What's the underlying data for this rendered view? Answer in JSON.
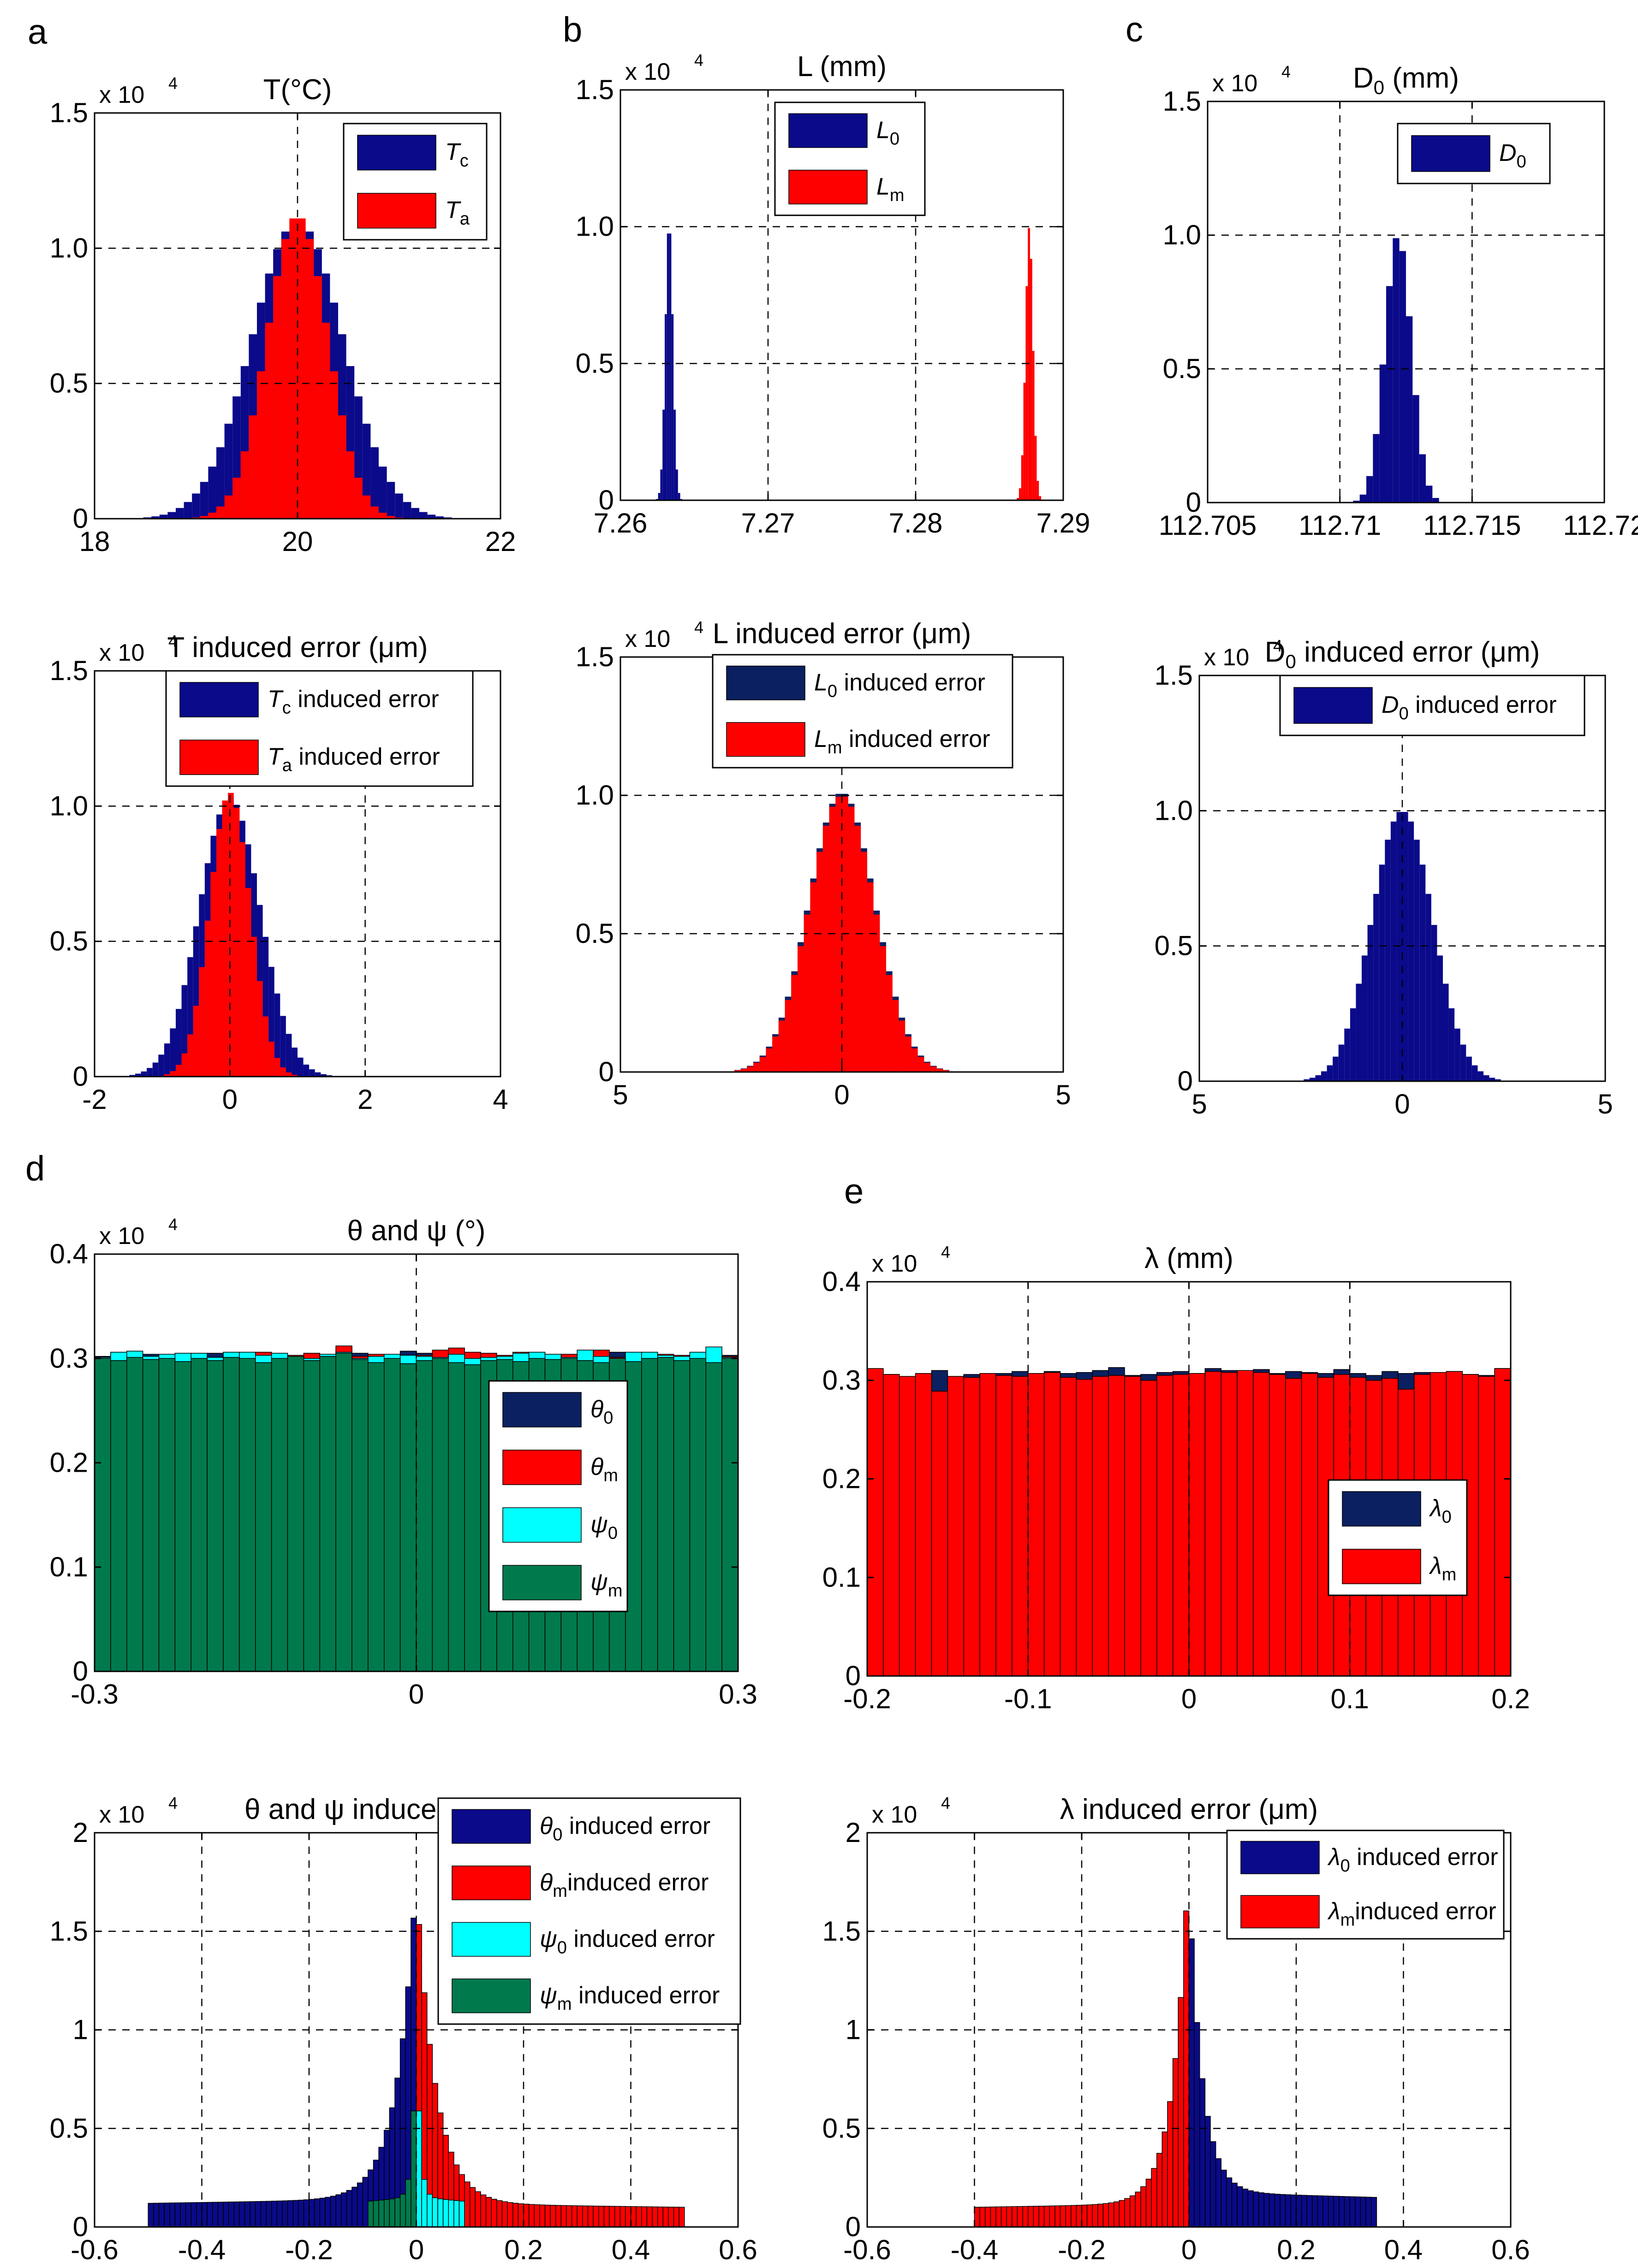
{
  "panel_letters": [
    "a",
    "b",
    "c",
    "d",
    "e"
  ],
  "chart_data": [
    {
      "id": "a_top",
      "type": "histogram",
      "title": "T(°C)",
      "multiplier": "x 10",
      "multiplier_exp": "4",
      "xlim": [
        18,
        22
      ],
      "ylim": [
        0,
        1.5
      ],
      "xticks": [
        18,
        20,
        22
      ],
      "xtick_labels": [
        "18",
        "20",
        "22"
      ],
      "yticks": [
        0,
        0.5,
        1.0,
        1.5
      ],
      "ytick_labels": [
        "0",
        "0.5",
        "1.0",
        "1.5"
      ],
      "xgrid": [
        20
      ],
      "ygrid": [
        0.5,
        1.0
      ],
      "legend": {
        "position": "top-right"
      },
      "series": [
        {
          "name": "T",
          "sub": "c",
          "color": "#0a0a8a",
          "dist": "gauss",
          "center": 20,
          "sigma": 0.45,
          "peak": 1.1,
          "bins": 50,
          "range": [
            18,
            22
          ]
        },
        {
          "name": "T",
          "sub": "a",
          "color": "#ff0000",
          "dist": "gauss",
          "center": 20,
          "sigma": 0.3,
          "peak": 1.12,
          "bins": 50,
          "range": [
            18,
            22
          ]
        }
      ]
    },
    {
      "id": "b_top",
      "type": "histogram",
      "title": "L (mm)",
      "multiplier": "x 10",
      "multiplier_exp": "4",
      "xlim": [
        7.26,
        7.29
      ],
      "ylim": [
        0,
        1.5
      ],
      "xticks": [
        7.26,
        7.27,
        7.28,
        7.29
      ],
      "xtick_labels": [
        "7.26",
        "7.27",
        "7.28",
        "7.29"
      ],
      "yticks": [
        0,
        0.5,
        1.0,
        1.5
      ],
      "ytick_labels": [
        "0",
        "0.5",
        "1.0",
        "1.5"
      ],
      "xgrid": [
        7.27,
        7.28
      ],
      "ygrid": [
        0.5,
        1.0
      ],
      "legend": {
        "position": "top-center"
      },
      "series": [
        {
          "name": "L",
          "sub": "0",
          "color": "#0a0a8a",
          "dist": "gauss",
          "center": 7.2633,
          "sigma": 0.00025,
          "peak": 1.02,
          "bins": 200,
          "range": [
            7.26,
            7.29
          ]
        },
        {
          "name": "L",
          "sub": "m",
          "color": "#ff0000",
          "dist": "gauss",
          "center": 7.2877,
          "sigma": 0.00025,
          "peak": 1.0,
          "bins": 200,
          "range": [
            7.26,
            7.29
          ]
        }
      ]
    },
    {
      "id": "c_top",
      "type": "histogram",
      "title": "D",
      "title_sub": "0",
      "title_after": " (mm)",
      "multiplier": "x 10",
      "multiplier_exp": "4",
      "xlim": [
        112.705,
        112.72
      ],
      "ylim": [
        0,
        1.5
      ],
      "xticks": [
        112.705,
        112.71,
        112.715,
        112.72
      ],
      "xtick_labels": [
        "112.705",
        "112.71",
        "112.715",
        "112.72"
      ],
      "yticks": [
        0,
        0.5,
        1.0,
        1.5
      ],
      "ytick_labels": [
        "0",
        "0.5",
        "1.0",
        "1.5"
      ],
      "xgrid": [
        112.71,
        112.715
      ],
      "ygrid": [
        0.5,
        1.0
      ],
      "legend": {
        "position": "top-right"
      },
      "series": [
        {
          "name": "D",
          "sub": "0",
          "color": "#0a0a8a",
          "dist": "gauss",
          "center": 112.7122,
          "sigma": 0.0005,
          "peak": 1.0,
          "bins": 60,
          "range": [
            112.705,
            112.72
          ]
        }
      ]
    },
    {
      "id": "a_bottom",
      "type": "histogram",
      "title": "T induced error (μm)",
      "multiplier": "x 10",
      "multiplier_exp": "4",
      "xlim": [
        -2,
        4
      ],
      "ylim": [
        0,
        1.5
      ],
      "xticks": [
        -2,
        0,
        2,
        4
      ],
      "xtick_labels": [
        "-2",
        "0",
        "2",
        "4"
      ],
      "yticks": [
        0,
        0.5,
        1.0,
        1.5
      ],
      "ytick_labels": [
        "0",
        "0.5",
        "1.0",
        "1.5"
      ],
      "xgrid": [
        0,
        2
      ],
      "ygrid": [
        0.5,
        1.0
      ],
      "legend": {
        "position": "top-center"
      },
      "series": [
        {
          "name": "T",
          "sub": "c",
          "suffix": " induced error",
          "color": "#0a0a8a",
          "dist": "gauss",
          "center": 0,
          "sigma": 0.45,
          "peak": 1.03,
          "bins": 70,
          "range": [
            -2,
            4
          ]
        },
        {
          "name": "T",
          "sub": "a",
          "suffix": " induced error",
          "color": "#ff0000",
          "dist": "gauss",
          "center": 0,
          "sigma": 0.3,
          "peak": 1.05,
          "bins": 70,
          "range": [
            -2,
            4
          ]
        }
      ]
    },
    {
      "id": "b_bottom",
      "type": "histogram",
      "title": "L induced error (μm)",
      "multiplier": "x 10",
      "multiplier_exp": "4",
      "xlim": [
        -5,
        5
      ],
      "ylim": [
        0,
        1.5
      ],
      "xticks": [
        -5,
        0,
        5
      ],
      "xtick_labels": [
        "5",
        "0",
        "5"
      ],
      "yticks": [
        0,
        0.5,
        1.0,
        1.5
      ],
      "ytick_labels": [
        "0",
        "0.5",
        "1.0",
        "1.5"
      ],
      "xgrid": [
        0
      ],
      "ygrid": [
        0.5,
        1.0
      ],
      "legend": {
        "position": "top-center"
      },
      "series": [
        {
          "name": "L",
          "sub": "0",
          "suffix": " induced error",
          "color": "#0a2060",
          "dist": "gauss",
          "center": 0,
          "sigma": 0.75,
          "peak": 1.01,
          "bins": 70,
          "range": [
            -5,
            5
          ]
        },
        {
          "name": "L",
          "sub": "m",
          "suffix": " induced error",
          "color": "#ff0000",
          "dist": "gauss",
          "center": 0,
          "sigma": 0.74,
          "peak": 1.0,
          "bins": 70,
          "range": [
            -5,
            5
          ]
        }
      ]
    },
    {
      "id": "c_bottom",
      "type": "histogram",
      "title": "D",
      "title_sub": "0",
      "title_after": " induced error (μm)",
      "multiplier": "x 10",
      "multiplier_exp": "4",
      "xlim": [
        -5,
        5
      ],
      "ylim": [
        0,
        1.5
      ],
      "xticks": [
        -5,
        0,
        5
      ],
      "xtick_labels": [
        "5",
        "0",
        "5"
      ],
      "yticks": [
        0,
        0.5,
        1.0,
        1.5
      ],
      "ytick_labels": [
        "0",
        "0.5",
        "1.0",
        "1.5"
      ],
      "xgrid": [
        0
      ],
      "ygrid": [
        0.5,
        1.0
      ],
      "legend": {
        "position": "top-right"
      },
      "series": [
        {
          "name": "D",
          "sub": "0",
          "suffix": " induced error",
          "color": "#0a0a8a",
          "dist": "gauss",
          "center": 0,
          "sigma": 0.75,
          "peak": 1.0,
          "bins": 70,
          "range": [
            -5,
            5
          ]
        }
      ]
    },
    {
      "id": "d_top",
      "type": "histogram",
      "title": "θ and ψ (°)",
      "multiplier": "x 10",
      "multiplier_exp": "4",
      "xlim": [
        -0.3,
        0.3
      ],
      "ylim": [
        0,
        0.4
      ],
      "xticks": [
        -0.3,
        0,
        0.3
      ],
      "xtick_labels": [
        "-0.3",
        "0",
        "0.3"
      ],
      "yticks": [
        0,
        0.1,
        0.2,
        0.3,
        0.4
      ],
      "ytick_labels": [
        "0",
        "0.1",
        "0.2",
        "0.3",
        "0.4"
      ],
      "xgrid": [
        0
      ],
      "ygrid": [],
      "legend": {
        "position": "right"
      },
      "series": [
        {
          "name": "θ",
          "sub": "0",
          "color": "#0a2060",
          "dist": "uniform",
          "range": [
            -0.3,
            0.3
          ],
          "bins": 40,
          "values": [
            0.302,
            0.303,
            0.3,
            0.304,
            0.301,
            0.3,
            0.302,
            0.305,
            0.303,
            0.301,
            0.3,
            0.304,
            0.302,
            0.301,
            0.303,
            0.31,
            0.305,
            0.301,
            0.303,
            0.307,
            0.305,
            0.303,
            0.302,
            0.304,
            0.301,
            0.302,
            0.3,
            0.305,
            0.303,
            0.302,
            0.301,
            0.303,
            0.306,
            0.303,
            0.301,
            0.3,
            0.302,
            0.304,
            0.305,
            0.303
          ]
        },
        {
          "name": "θ",
          "sub": "m",
          "color": "#ff0000",
          "dist": "uniform",
          "range": [
            -0.3,
            0.3
          ],
          "bins": 40,
          "values": [
            0.3,
            0.301,
            0.303,
            0.3,
            0.302,
            0.303,
            0.301,
            0.299,
            0.302,
            0.303,
            0.306,
            0.301,
            0.303,
            0.305,
            0.301,
            0.312,
            0.302,
            0.304,
            0.301,
            0.3,
            0.303,
            0.308,
            0.31,
            0.306,
            0.305,
            0.303,
            0.306,
            0.3,
            0.302,
            0.304,
            0.302,
            0.308,
            0.301,
            0.303,
            0.305,
            0.304,
            0.303,
            0.302,
            0.301,
            0.302
          ]
        },
        {
          "name": "ψ",
          "sub": "0",
          "color": "#00ffff",
          "dist": "uniform",
          "range": [
            -0.3,
            0.3
          ],
          "bins": 40,
          "values": [
            0.301,
            0.306,
            0.307,
            0.302,
            0.304,
            0.305,
            0.305,
            0.301,
            0.306,
            0.306,
            0.303,
            0.305,
            0.302,
            0.3,
            0.304,
            0.306,
            0.3,
            0.302,
            0.304,
            0.303,
            0.302,
            0.301,
            0.304,
            0.3,
            0.301,
            0.302,
            0.305,
            0.306,
            0.304,
            0.301,
            0.308,
            0.302,
            0.3,
            0.306,
            0.306,
            0.303,
            0.302,
            0.306,
            0.311,
            0.301
          ]
        },
        {
          "name": "ψ",
          "sub": "m",
          "color": "#007a4d",
          "dist": "uniform",
          "range": [
            -0.3,
            0.3
          ],
          "bins": 40,
          "values": [
            0.3,
            0.298,
            0.301,
            0.299,
            0.3,
            0.297,
            0.3,
            0.298,
            0.301,
            0.3,
            0.296,
            0.3,
            0.302,
            0.298,
            0.302,
            0.305,
            0.299,
            0.296,
            0.3,
            0.295,
            0.298,
            0.3,
            0.296,
            0.294,
            0.298,
            0.299,
            0.297,
            0.3,
            0.299,
            0.3,
            0.298,
            0.296,
            0.3,
            0.297,
            0.3,
            0.301,
            0.298,
            0.3,
            0.296,
            0.3
          ]
        }
      ]
    },
    {
      "id": "e_top",
      "type": "histogram",
      "title": "λ (mm)",
      "multiplier": "x 10",
      "multiplier_exp": "4",
      "xlim": [
        -0.2,
        0.2
      ],
      "ylim": [
        0,
        0.4
      ],
      "xticks": [
        -0.2,
        -0.1,
        0,
        0.1,
        0.2
      ],
      "xtick_labels": [
        "-0.2",
        "-0.1",
        "0",
        "0.1",
        "0.2"
      ],
      "yticks": [
        0,
        0.1,
        0.2,
        0.3,
        0.4
      ],
      "ytick_labels": [
        "0",
        "0.1",
        "0.2",
        "0.3",
        "0.4"
      ],
      "xgrid": [
        -0.1,
        0,
        0.1
      ],
      "ygrid": [],
      "legend": {
        "position": "right"
      },
      "series": [
        {
          "name": "λ",
          "sub": "0",
          "color": "#0a2060",
          "dist": "uniform",
          "range": [
            -0.2,
            0.2
          ],
          "bins": 40,
          "values": [
            0.31,
            0.306,
            0.303,
            0.305,
            0.31,
            0.304,
            0.306,
            0.305,
            0.307,
            0.309,
            0.304,
            0.309,
            0.307,
            0.308,
            0.31,
            0.313,
            0.305,
            0.306,
            0.308,
            0.309,
            0.307,
            0.312,
            0.31,
            0.305,
            0.311,
            0.307,
            0.309,
            0.308,
            0.307,
            0.311,
            0.307,
            0.305,
            0.309,
            0.307,
            0.308,
            0.305,
            0.309,
            0.306,
            0.305,
            0.312
          ]
        },
        {
          "name": "λ",
          "sub": "m",
          "color": "#ff0000",
          "dist": "uniform",
          "range": [
            -0.2,
            0.2
          ],
          "bins": 40,
          "values": [
            0.312,
            0.306,
            0.304,
            0.307,
            0.289,
            0.304,
            0.303,
            0.307,
            0.305,
            0.304,
            0.307,
            0.308,
            0.303,
            0.301,
            0.304,
            0.305,
            0.304,
            0.3,
            0.305,
            0.306,
            0.307,
            0.309,
            0.308,
            0.31,
            0.308,
            0.306,
            0.302,
            0.307,
            0.303,
            0.306,
            0.303,
            0.3,
            0.302,
            0.291,
            0.306,
            0.308,
            0.309,
            0.306,
            0.304,
            0.312
          ]
        }
      ]
    },
    {
      "id": "d_bottom",
      "type": "histogram",
      "title": "θ and ψ induced error (μm)",
      "multiplier": "x 10",
      "multiplier_exp": "4",
      "xlim": [
        -0.6,
        0.6
      ],
      "ylim": [
        0,
        2
      ],
      "xticks": [
        -0.6,
        -0.4,
        -0.2,
        0,
        0.2,
        0.4,
        0.6
      ],
      "xtick_labels": [
        "-0.6",
        "-0.4",
        "-0.2",
        "0",
        "0.2",
        "0.4",
        "0.6"
      ],
      "yticks": [
        0,
        0.5,
        1,
        1.5,
        2
      ],
      "ytick_labels": [
        "0",
        "0.5",
        "1",
        "1.5",
        "2"
      ],
      "xgrid": [
        -0.4,
        -0.2,
        0,
        0.2,
        0.4
      ],
      "ygrid": [
        0.5,
        1,
        1.5
      ],
      "legend": {
        "position": "top-right"
      },
      "series": [
        {
          "name": "θ",
          "sub": "0",
          "suffix": " induced error",
          "color": "#0a0a8a",
          "dist": "tail",
          "side": "left",
          "from": -0.5,
          "to": 0,
          "peak": 1.76,
          "edge": 0.12,
          "bins": 50
        },
        {
          "name": "θ",
          "sub": "m",
          "suffix": "induced error",
          "color": "#ff0000",
          "dist": "tail",
          "side": "right",
          "from": 0,
          "to": 0.5,
          "peak": 1.73,
          "edge": 0.1,
          "bins": 50
        },
        {
          "name": "ψ",
          "sub": "0",
          "suffix": " induced error",
          "color": "#00ffff",
          "dist": "tail",
          "side": "right",
          "from": 0,
          "to": 0.09,
          "peak": 1.08,
          "edge": 0.13,
          "bins": 9
        },
        {
          "name": "ψ",
          "sub": "m",
          "suffix": " induced error",
          "color": "#007a4d",
          "dist": "tail",
          "side": "left",
          "from": -0.09,
          "to": 0,
          "peak": 1.08,
          "edge": 0.13,
          "bins": 9
        }
      ]
    },
    {
      "id": "e_bottom",
      "type": "histogram",
      "title": "λ induced error (μm)",
      "multiplier": "x 10",
      "multiplier_exp": "4",
      "xlim": [
        -0.6,
        0.6
      ],
      "ylim": [
        0,
        2
      ],
      "xticks": [
        -0.6,
        -0.4,
        -0.2,
        0,
        0.2,
        0.4,
        0.6
      ],
      "xtick_labels": [
        "-0.6",
        "-0.4",
        "-0.2",
        "0",
        "0.2",
        "0.4",
        "0.6"
      ],
      "yticks": [
        0,
        0.5,
        1,
        1.5,
        2
      ],
      "ytick_labels": [
        "0",
        "0.5",
        "1",
        "1.5",
        "2"
      ],
      "xgrid": [
        -0.4,
        -0.2,
        0,
        0.2,
        0.4,
        0.6
      ],
      "ygrid": [
        0.5,
        1,
        1.5
      ],
      "legend": {
        "position": "top-right"
      },
      "series": [
        {
          "name": "λ",
          "sub": "0",
          "suffix": " induced error",
          "color": "#0a0a8a",
          "dist": "tail",
          "side": "right",
          "from": 0,
          "to": 0.35,
          "peak": 1.72,
          "edge": 0.15,
          "bins": 35
        },
        {
          "name": "λ",
          "sub": "m",
          "suffix": "induced error",
          "color": "#ff0000",
          "dist": "tail",
          "side": "left",
          "from": -0.4,
          "to": 0,
          "peak": 1.87,
          "edge": 0.1,
          "bins": 40
        }
      ]
    }
  ]
}
